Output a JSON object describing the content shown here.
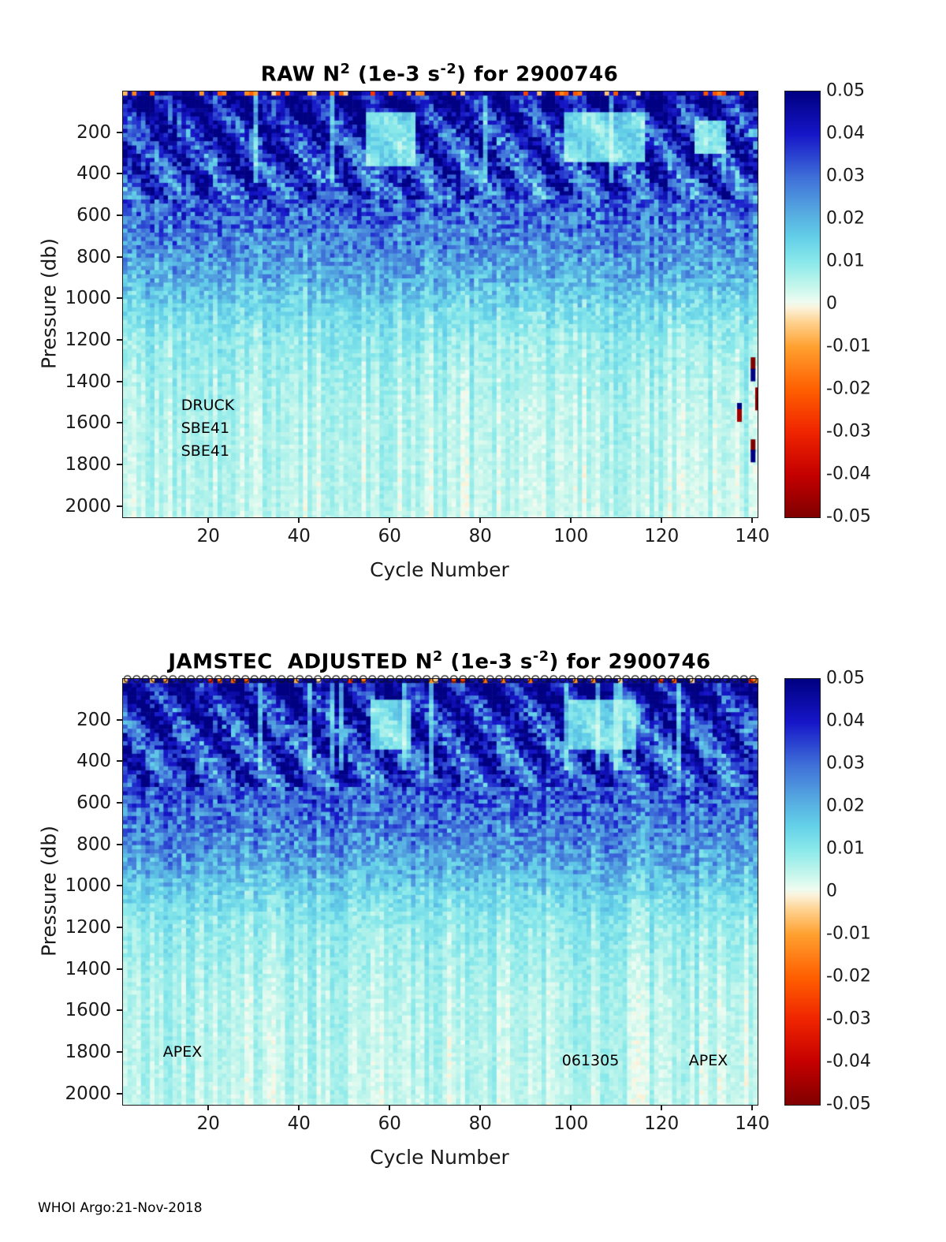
{
  "page": {
    "footer": "WHOI Argo:21-Nov-2018",
    "background": "#ffffff"
  },
  "style": {
    "axis_color": "#1a1a1a",
    "text_color": "#000000",
    "marker_color": "#111111"
  },
  "colormap": [
    {
      "v": -0.05,
      "c": "#7f0000"
    },
    {
      "v": -0.04,
      "c": "#c40000"
    },
    {
      "v": -0.03,
      "c": "#ef2400"
    },
    {
      "v": -0.02,
      "c": "#ff5f00"
    },
    {
      "v": -0.01,
      "c": "#ffa02e"
    },
    {
      "v": -0.004,
      "c": "#ffd392"
    },
    {
      "v": -0.0008,
      "c": "#fbf2d9"
    },
    {
      "v": 0.0008,
      "c": "#eefcf2"
    },
    {
      "v": 0.004,
      "c": "#c8f7ec"
    },
    {
      "v": 0.01,
      "c": "#8ae9ea"
    },
    {
      "v": 0.016,
      "c": "#63cfe8"
    },
    {
      "v": 0.022,
      "c": "#55a8e0"
    },
    {
      "v": 0.03,
      "c": "#3f6fd8"
    },
    {
      "v": 0.04,
      "c": "#1616c8"
    },
    {
      "v": 0.05,
      "c": "#000082"
    }
  ],
  "chart_data": [
    {
      "type": "heatmap",
      "title_parts": [
        "RAW N",
        "2",
        " (1e-3 s",
        "-2",
        ") for 2900746"
      ],
      "xlabel": "Cycle Number",
      "ylabel": "Pressure (db)",
      "x_range": [
        1,
        141
      ],
      "xticks": [
        20,
        40,
        60,
        80,
        100,
        120,
        140
      ],
      "y_range": [
        0,
        2050
      ],
      "yticks": [
        200,
        400,
        600,
        800,
        1000,
        1200,
        1400,
        1600,
        1800,
        2000
      ],
      "y_direction": "reversed",
      "colorbar": {
        "min": -0.05,
        "max": 0.05,
        "ticks": [
          "0.05",
          "0.04",
          "0.03",
          "0.02",
          "0.01",
          "0",
          "-0.01",
          "-0.02",
          "-0.03",
          "-0.04",
          "-0.05"
        ]
      },
      "annotations": [
        {
          "text": "DRUCK",
          "cycle": 14,
          "pressure": 1515
        },
        {
          "text": "SBE41",
          "cycle": 14,
          "pressure": 1625
        },
        {
          "text": "SBE41",
          "cycle": 14,
          "pressure": 1735
        }
      ],
      "outliers": [
        {
          "cycle": 140,
          "pressure": 1310,
          "value": -0.05
        },
        {
          "cycle": 140,
          "pressure": 1365,
          "value": 0.05
        },
        {
          "cycle": 141,
          "pressure": 1455,
          "value": -0.048
        },
        {
          "cycle": 141,
          "pressure": 1505,
          "value": -0.05
        },
        {
          "cycle": 137,
          "pressure": 1530,
          "value": 0.05
        },
        {
          "cycle": 137,
          "pressure": 1560,
          "value": -0.045
        },
        {
          "cycle": 140,
          "pressure": 1705,
          "value": -0.05
        },
        {
          "cycle": 140,
          "pressure": 1755,
          "value": 0.05
        }
      ],
      "markers_top": null,
      "seed": 2900746,
      "band_amp": 0.011,
      "pale_patches": [
        {
          "c0": 55,
          "c1": 65,
          "p0": 110,
          "p1": 360
        },
        {
          "c0": 99,
          "c1": 116,
          "p0": 110,
          "p1": 340
        },
        {
          "c0": 128,
          "c1": 134,
          "p0": 140,
          "p1": 300
        }
      ],
      "depth_profile": [
        {
          "p": 0,
          "mean": 0.044,
          "noise": 0.008
        },
        {
          "p": 60,
          "mean": 0.046,
          "noise": 0.01
        },
        {
          "p": 150,
          "mean": 0.04,
          "noise": 0.014
        },
        {
          "p": 300,
          "mean": 0.037,
          "noise": 0.014
        },
        {
          "p": 500,
          "mean": 0.033,
          "noise": 0.012
        },
        {
          "p": 700,
          "mean": 0.027,
          "noise": 0.01
        },
        {
          "p": 900,
          "mean": 0.02,
          "noise": 0.008
        },
        {
          "p": 1050,
          "mean": 0.013,
          "noise": 0.005
        },
        {
          "p": 1200,
          "mean": 0.009,
          "noise": 0.0035
        },
        {
          "p": 1500,
          "mean": 0.006,
          "noise": 0.0025
        },
        {
          "p": 2050,
          "mean": 0.0045,
          "noise": 0.002
        }
      ]
    },
    {
      "type": "heatmap",
      "title_parts": [
        "JAMSTEC  ADJUSTED N",
        "2",
        " (1e-3 s",
        "-2",
        ") for 2900746"
      ],
      "xlabel": "Cycle Number",
      "ylabel": "Pressure (db)",
      "x_range": [
        1,
        141
      ],
      "xticks": [
        20,
        40,
        60,
        80,
        100,
        120,
        140
      ],
      "y_range": [
        0,
        2050
      ],
      "yticks": [
        200,
        400,
        600,
        800,
        1000,
        1200,
        1400,
        1600,
        1800,
        2000
      ],
      "y_direction": "reversed",
      "colorbar": {
        "min": -0.05,
        "max": 0.05,
        "ticks": [
          "0.05",
          "0.04",
          "0.03",
          "0.02",
          "0.01",
          "0",
          "-0.01",
          "-0.02",
          "-0.03",
          "-0.04",
          "-0.05"
        ]
      },
      "annotations": [
        {
          "text": "APEX",
          "cycle": 10,
          "pressure": 1800
        },
        {
          "text": "061305",
          "cycle": 98,
          "pressure": 1840
        },
        {
          "text": "APEX",
          "cycle": 126,
          "pressure": 1840
        }
      ],
      "outliers": [],
      "markers_top": {
        "symbol": "circle",
        "count": 70
      },
      "seed": 61305,
      "band_amp": 0.011,
      "pale_patches": [
        {
          "c0": 56,
          "c1": 64,
          "p0": 110,
          "p1": 340
        },
        {
          "c0": 100,
          "c1": 114,
          "p0": 110,
          "p1": 330
        }
      ],
      "depth_profile": [
        {
          "p": 0,
          "mean": 0.044,
          "noise": 0.008
        },
        {
          "p": 60,
          "mean": 0.046,
          "noise": 0.01
        },
        {
          "p": 150,
          "mean": 0.04,
          "noise": 0.014
        },
        {
          "p": 300,
          "mean": 0.037,
          "noise": 0.014
        },
        {
          "p": 500,
          "mean": 0.034,
          "noise": 0.012
        },
        {
          "p": 700,
          "mean": 0.028,
          "noise": 0.01
        },
        {
          "p": 900,
          "mean": 0.021,
          "noise": 0.008
        },
        {
          "p": 1050,
          "mean": 0.013,
          "noise": 0.005
        },
        {
          "p": 1200,
          "mean": 0.009,
          "noise": 0.0035
        },
        {
          "p": 1500,
          "mean": 0.006,
          "noise": 0.0025
        },
        {
          "p": 2050,
          "mean": 0.0045,
          "noise": 0.002
        }
      ]
    }
  ]
}
